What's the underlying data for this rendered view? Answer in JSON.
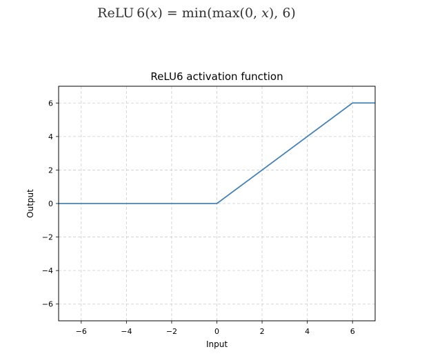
{
  "formula": {
    "name": "ReLU ",
    "six_a": "6",
    "open1": "(",
    "var1": "x",
    "mid1": ") = min(max(0, ",
    "var2": "x",
    "tail": "), 6)"
  },
  "chart_data": {
    "type": "line",
    "title": "ReLU6 activation function",
    "xlabel": "Input",
    "ylabel": "Output",
    "xlim": [
      -7,
      7
    ],
    "ylim": [
      -7,
      7
    ],
    "xticks": [
      -6,
      -4,
      -2,
      0,
      2,
      4,
      6
    ],
    "yticks": [
      -6,
      -4,
      -2,
      0,
      2,
      4,
      6
    ],
    "grid": true,
    "series": [
      {
        "x": [
          -7,
          0,
          6,
          7
        ],
        "y": [
          0,
          0,
          6,
          6
        ],
        "color": "#4682b4"
      }
    ]
  }
}
